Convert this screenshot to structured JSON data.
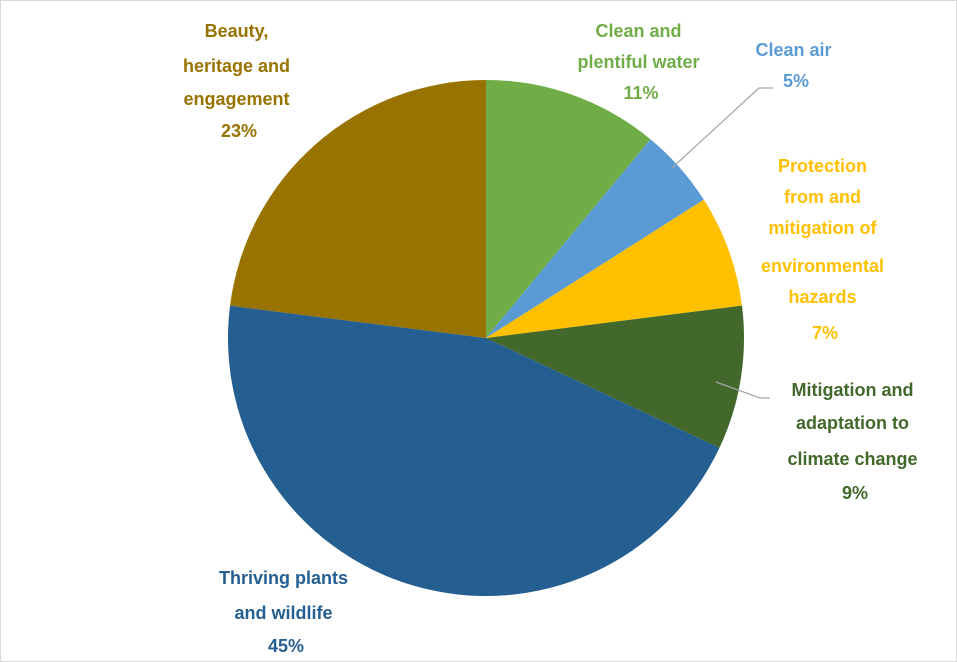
{
  "chart_data": {
    "type": "pie",
    "title": "",
    "start_angle_deg": 0,
    "direction": "clockwise",
    "legend": "none",
    "slices": [
      {
        "label_lines": [
          "Clean and",
          "plentiful water"
        ],
        "percent_label": "11%",
        "value": 11,
        "color": "#70ad47"
      },
      {
        "label_lines": [
          "Clean air"
        ],
        "percent_label": "5%",
        "value": 5,
        "color": "#5b9bd5"
      },
      {
        "label_lines": [
          "Protection",
          "from and",
          "mitigation of",
          "environmental",
          "hazards"
        ],
        "percent_label": "7%",
        "value": 7,
        "color": "#ffc000"
      },
      {
        "label_lines": [
          "Mitigation and",
          "adaptation to",
          "climate change"
        ],
        "percent_label": "9%",
        "value": 9,
        "color": "#43682b"
      },
      {
        "label_lines": [
          "Thriving plants",
          "and wildlife"
        ],
        "percent_label": "45%",
        "value": 45,
        "color": "#255e91"
      },
      {
        "label_lines": [
          "Beauty,",
          "heritage and",
          "engagement"
        ],
        "percent_label": "23%",
        "value": 23,
        "color": "#997300"
      }
    ]
  }
}
